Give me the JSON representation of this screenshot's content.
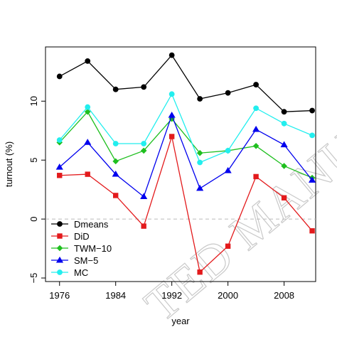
{
  "watermark_text": "TED MANUS",
  "chart_data": {
    "type": "line",
    "xlabel": "year",
    "ylabel": "turnout (%)",
    "xlim": [
      1974,
      2012.5
    ],
    "ylim": [
      -5.3,
      14.6
    ],
    "x_ticks": [
      1976,
      1984,
      1992,
      2000,
      2008
    ],
    "y_ticks": [
      -5,
      0,
      5,
      10
    ],
    "grid": false,
    "reference_line": {
      "y": 0,
      "style": "dashed",
      "color": "#bbbbbb"
    },
    "legend": {
      "placement": "bottom-left"
    },
    "x": [
      1976,
      1980,
      1984,
      1988,
      1992,
      1996,
      2000,
      2004,
      2008,
      2012
    ],
    "series": [
      {
        "name": "Dmeans",
        "color": "#000000",
        "marker": "circle",
        "values": [
          12.1,
          13.4,
          11.0,
          11.2,
          13.9,
          10.2,
          10.7,
          11.4,
          9.1,
          9.2
        ]
      },
      {
        "name": "DiD",
        "color": "#e31a1c",
        "marker": "square",
        "values": [
          3.7,
          3.8,
          2.0,
          -0.6,
          7.0,
          -4.5,
          -2.3,
          3.6,
          1.8,
          -1.0
        ]
      },
      {
        "name": "TWM−10",
        "color": "#1fbf1f",
        "marker": "diamond",
        "values": [
          6.5,
          9.1,
          4.9,
          5.8,
          8.5,
          5.6,
          5.8,
          6.2,
          4.5,
          3.5
        ]
      },
      {
        "name": "SM−5",
        "color": "#0000ee",
        "marker": "triangle",
        "values": [
          4.4,
          6.5,
          3.8,
          1.9,
          8.8,
          2.6,
          4.1,
          7.6,
          6.3,
          3.3
        ]
      },
      {
        "name": "MC",
        "color": "#22eeee",
        "marker": "circle",
        "values": [
          6.7,
          9.5,
          6.4,
          6.4,
          10.6,
          4.8,
          5.8,
          9.4,
          8.1,
          7.1
        ]
      }
    ]
  }
}
